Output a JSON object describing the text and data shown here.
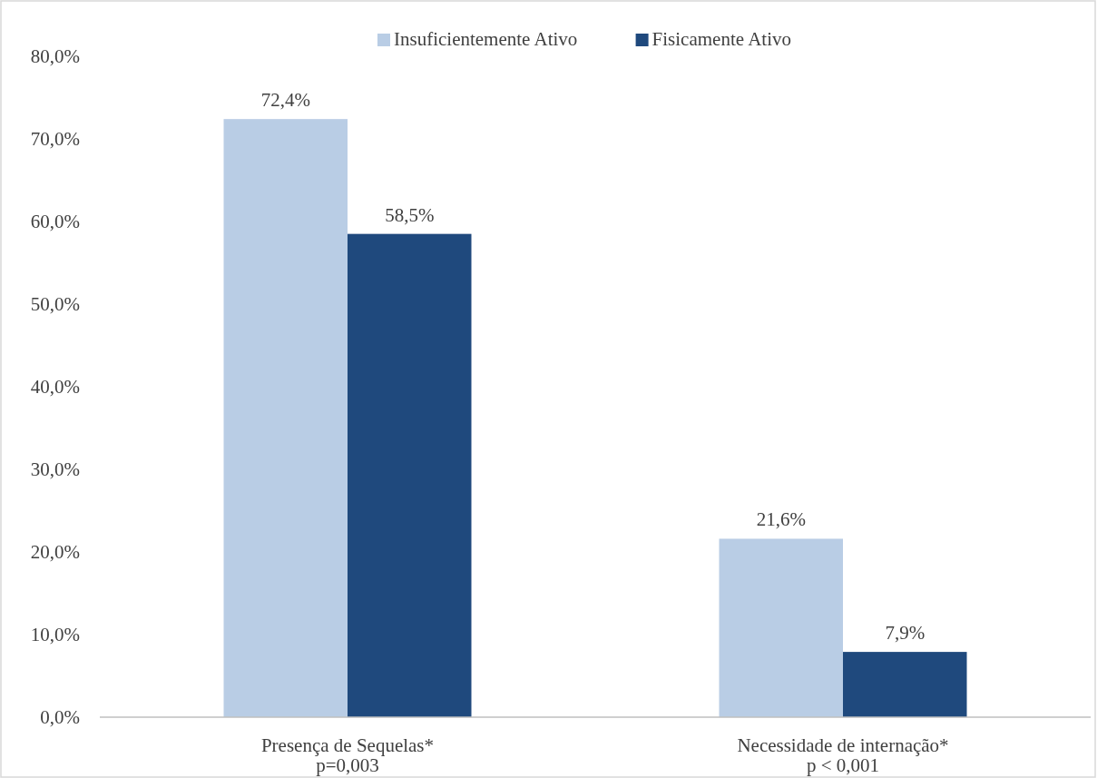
{
  "chart_data": {
    "type": "bar",
    "categories": [
      "Presença de Sequelas*\np=0,003",
      "Necessidade de internação*\np < 0,001"
    ],
    "series": [
      {
        "name": "Insuficientemente Ativo",
        "color": "#b9cde5",
        "values": [
          72.4,
          21.6
        ],
        "value_labels": [
          "72,4%",
          "21,6%"
        ]
      },
      {
        "name": "Fisicamente Ativo",
        "color": "#1f497d",
        "values": [
          58.5,
          7.9
        ],
        "value_labels": [
          "58,5%",
          "7,9%"
        ]
      }
    ],
    "ylim": [
      0,
      80
    ],
    "yticks": [
      {
        "value": 0,
        "label": "0,0%"
      },
      {
        "value": 10,
        "label": "10,0%"
      },
      {
        "value": 20,
        "label": "20,0%"
      },
      {
        "value": 30,
        "label": "30,0%"
      },
      {
        "value": 40,
        "label": "40,0%"
      },
      {
        "value": 50,
        "label": "50,0%"
      },
      {
        "value": 60,
        "label": "60,0%"
      },
      {
        "value": 70,
        "label": "70,0%"
      },
      {
        "value": 80,
        "label": "80,0%"
      }
    ],
    "legend": "top",
    "grid": false
  }
}
